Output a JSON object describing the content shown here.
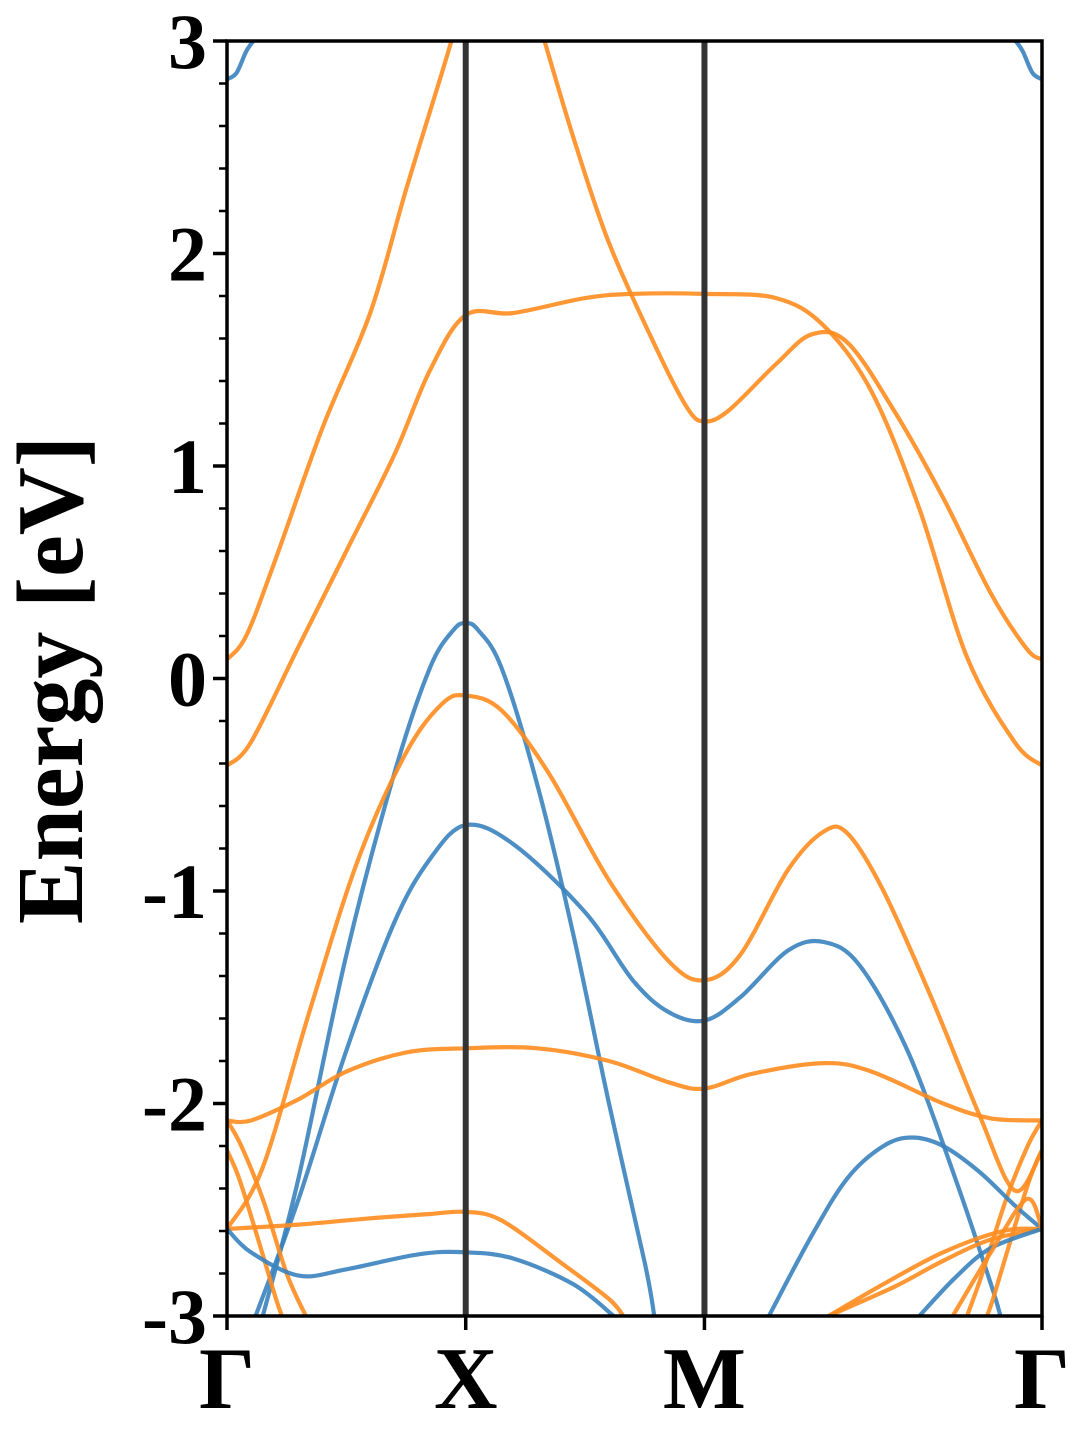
{
  "chart_data": {
    "type": "line",
    "title": "",
    "xlabel": "",
    "ylabel": "Energy [eV]",
    "ylim": [
      -3,
      3
    ],
    "y_major_ticks": [
      -3,
      -2,
      -1,
      0,
      1,
      2,
      3
    ],
    "y_tick_labels": [
      "-3",
      "-2",
      "-1",
      "0",
      "1",
      "2",
      "3"
    ],
    "y_minor_step": 0.2,
    "k_points": [
      {
        "label": "Γ",
        "k": 0.0
      },
      {
        "label": "X",
        "k": 1.0
      },
      {
        "label": "M",
        "k": 2.0
      },
      {
        "label": "Γ",
        "k": 3.414
      }
    ],
    "xlim": [
      0,
      3.414
    ],
    "grid": false,
    "legend": "none",
    "colors": {
      "blue": "#3a83be",
      "orange": "#ff8c1f",
      "kline": "#333333"
    },
    "series": [
      {
        "color": "blue",
        "points": [
          [
            0,
            2.82
          ],
          [
            0.04,
            2.85
          ],
          [
            0.08,
            2.95
          ],
          [
            0.11,
            3.0
          ]
        ]
      },
      {
        "color": "blue",
        "points": [
          [
            3.414,
            2.82
          ],
          [
            3.374,
            2.85
          ],
          [
            3.334,
            2.95
          ],
          [
            3.304,
            3.0
          ]
        ]
      },
      {
        "color": "orange",
        "points": [
          [
            0,
            0.09
          ],
          [
            0.08,
            0.2
          ],
          [
            0.2,
            0.55
          ],
          [
            0.4,
            1.18
          ],
          [
            0.6,
            1.72
          ],
          [
            0.75,
            2.3
          ],
          [
            0.9,
            2.85
          ],
          [
            0.94,
            3.0
          ]
        ]
      },
      {
        "color": "orange",
        "points": [
          [
            1.33,
            3.0
          ],
          [
            1.45,
            2.55
          ],
          [
            1.6,
            2.05
          ],
          [
            1.8,
            1.55
          ],
          [
            1.93,
            1.27
          ],
          [
            2.0,
            1.21
          ],
          [
            2.1,
            1.26
          ],
          [
            2.3,
            1.48
          ],
          [
            2.45,
            1.62
          ],
          [
            2.6,
            1.58
          ],
          [
            2.8,
            1.25
          ],
          [
            3.0,
            0.85
          ],
          [
            3.2,
            0.4
          ],
          [
            3.35,
            0.14
          ],
          [
            3.414,
            0.09
          ]
        ]
      },
      {
        "color": "orange",
        "points": [
          [
            0,
            -0.41
          ],
          [
            0.1,
            -0.3
          ],
          [
            0.3,
            0.15
          ],
          [
            0.5,
            0.6
          ],
          [
            0.7,
            1.05
          ],
          [
            0.85,
            1.45
          ],
          [
            1.0,
            1.71
          ],
          [
            1.2,
            1.72
          ],
          [
            1.5,
            1.79
          ],
          [
            1.7,
            1.81
          ],
          [
            2.0,
            1.81
          ],
          [
            2.3,
            1.79
          ],
          [
            2.5,
            1.66
          ],
          [
            2.7,
            1.35
          ],
          [
            2.9,
            0.8
          ],
          [
            3.1,
            0.1
          ],
          [
            3.3,
            -0.3
          ],
          [
            3.414,
            -0.41
          ]
        ]
      },
      {
        "color": "blue",
        "points": [
          [
            0.15,
            -3.0
          ],
          [
            0.3,
            -2.35
          ],
          [
            0.5,
            -1.3
          ],
          [
            0.7,
            -0.45
          ],
          [
            0.85,
            0.05
          ],
          [
            0.95,
            0.23
          ],
          [
            1.0,
            0.26
          ],
          [
            1.05,
            0.23
          ],
          [
            1.15,
            0.05
          ],
          [
            1.3,
            -0.5
          ],
          [
            1.45,
            -1.2
          ],
          [
            1.6,
            -2.0
          ],
          [
            1.75,
            -2.75
          ],
          [
            1.79,
            -3.0
          ]
        ]
      },
      {
        "color": "blue",
        "points": [
          [
            0.12,
            -3.0
          ],
          [
            0.3,
            -2.45
          ],
          [
            0.5,
            -1.75
          ],
          [
            0.7,
            -1.15
          ],
          [
            0.85,
            -0.85
          ],
          [
            1.0,
            -0.69
          ],
          [
            1.2,
            -0.78
          ],
          [
            1.5,
            -1.1
          ],
          [
            1.7,
            -1.42
          ],
          [
            1.85,
            -1.57
          ],
          [
            2.0,
            -1.61
          ],
          [
            2.15,
            -1.5
          ],
          [
            2.35,
            -1.28
          ],
          [
            2.5,
            -1.24
          ],
          [
            2.65,
            -1.35
          ],
          [
            2.85,
            -1.75
          ],
          [
            3.05,
            -2.35
          ],
          [
            3.2,
            -2.85
          ],
          [
            3.24,
            -3.0
          ]
        ]
      },
      {
        "color": "orange",
        "points": [
          [
            0,
            -2.59
          ],
          [
            0.15,
            -2.3
          ],
          [
            0.35,
            -1.55
          ],
          [
            0.55,
            -0.85
          ],
          [
            0.75,
            -0.35
          ],
          [
            0.9,
            -0.12
          ],
          [
            1.0,
            -0.08
          ],
          [
            1.15,
            -0.15
          ],
          [
            1.35,
            -0.45
          ],
          [
            1.6,
            -0.95
          ],
          [
            1.85,
            -1.33
          ],
          [
            2.0,
            -1.42
          ],
          [
            2.15,
            -1.3
          ],
          [
            2.35,
            -0.9
          ],
          [
            2.5,
            -0.72
          ],
          [
            2.6,
            -0.73
          ],
          [
            2.75,
            -1.0
          ],
          [
            2.95,
            -1.5
          ],
          [
            3.15,
            -2.05
          ],
          [
            3.3,
            -2.41
          ],
          [
            3.414,
            -2.22
          ]
        ]
      },
      {
        "color": "orange",
        "points": [
          [
            0,
            -2.08
          ],
          [
            0.1,
            -2.08
          ],
          [
            0.3,
            -1.98
          ],
          [
            0.5,
            -1.85
          ],
          [
            0.75,
            -1.76
          ],
          [
            1.0,
            -1.74
          ],
          [
            1.3,
            -1.74
          ],
          [
            1.6,
            -1.8
          ],
          [
            1.85,
            -1.9
          ],
          [
            2.0,
            -1.93
          ],
          [
            2.2,
            -1.86
          ],
          [
            2.5,
            -1.81
          ],
          [
            2.7,
            -1.85
          ],
          [
            3.0,
            -2.0
          ],
          [
            3.2,
            -2.07
          ],
          [
            3.414,
            -2.08
          ]
        ]
      },
      {
        "color": "orange",
        "points": [
          [
            0,
            -2.08
          ],
          [
            0.06,
            -2.2
          ],
          [
            0.15,
            -2.45
          ],
          [
            0.25,
            -2.8
          ],
          [
            0.33,
            -3.0
          ]
        ]
      },
      {
        "color": "orange",
        "points": [
          [
            0,
            -2.22
          ],
          [
            0.05,
            -2.35
          ],
          [
            0.12,
            -2.6
          ],
          [
            0.2,
            -2.9
          ],
          [
            0.23,
            -3.0
          ]
        ]
      },
      {
        "color": "orange",
        "points": [
          [
            3.414,
            -2.22
          ],
          [
            3.364,
            -2.35
          ],
          [
            3.294,
            -2.6
          ],
          [
            3.214,
            -2.9
          ],
          [
            3.184,
            -3.0
          ]
        ]
      },
      {
        "color": "orange",
        "points": [
          [
            3.414,
            -2.08
          ],
          [
            3.354,
            -2.2
          ],
          [
            3.264,
            -2.45
          ],
          [
            3.164,
            -2.8
          ],
          [
            3.1,
            -3.0
          ]
        ]
      },
      {
        "color": "orange",
        "points": [
          [
            0,
            -2.59
          ],
          [
            0.3,
            -2.57
          ],
          [
            0.6,
            -2.54
          ],
          [
            0.85,
            -2.52
          ],
          [
            1.0,
            -2.51
          ],
          [
            1.15,
            -2.55
          ],
          [
            1.4,
            -2.75
          ],
          [
            1.6,
            -2.92
          ],
          [
            1.66,
            -3.0
          ]
        ]
      },
      {
        "color": "blue",
        "points": [
          [
            0,
            -2.59
          ],
          [
            0.1,
            -2.7
          ],
          [
            0.3,
            -2.81
          ],
          [
            0.5,
            -2.78
          ],
          [
            0.8,
            -2.71
          ],
          [
            1.0,
            -2.7
          ],
          [
            1.2,
            -2.73
          ],
          [
            1.45,
            -2.85
          ],
          [
            1.62,
            -3.0
          ]
        ]
      },
      {
        "color": "blue",
        "points": [
          [
            2.27,
            -3.0
          ],
          [
            2.45,
            -2.62
          ],
          [
            2.6,
            -2.35
          ],
          [
            2.75,
            -2.2
          ],
          [
            2.87,
            -2.16
          ],
          [
            3.0,
            -2.2
          ],
          [
            3.15,
            -2.32
          ],
          [
            3.3,
            -2.48
          ],
          [
            3.414,
            -2.59
          ]
        ]
      },
      {
        "color": "orange",
        "points": [
          [
            2.52,
            -3.0
          ],
          [
            2.8,
            -2.86
          ],
          [
            3.0,
            -2.74
          ],
          [
            3.2,
            -2.64
          ],
          [
            3.414,
            -2.59
          ]
        ]
      },
      {
        "color": "orange",
        "points": [
          [
            2.52,
            -3.0
          ],
          [
            2.75,
            -2.85
          ],
          [
            3.0,
            -2.7
          ],
          [
            3.25,
            -2.6
          ],
          [
            3.414,
            -2.59
          ]
        ]
      },
      {
        "color": "blue",
        "points": [
          [
            2.9,
            -3.0
          ],
          [
            3.05,
            -2.82
          ],
          [
            3.2,
            -2.68
          ],
          [
            3.414,
            -2.59
          ]
        ]
      },
      {
        "color": "orange",
        "points": [
          [
            3.04,
            -3.0
          ],
          [
            3.2,
            -2.7
          ],
          [
            3.35,
            -2.45
          ],
          [
            3.414,
            -2.59
          ]
        ]
      }
    ]
  }
}
